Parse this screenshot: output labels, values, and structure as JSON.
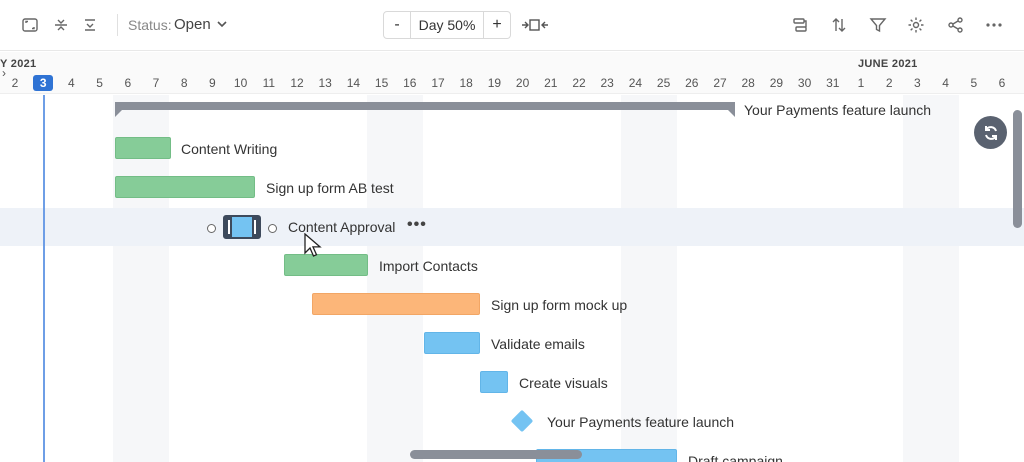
{
  "toolbar": {
    "status_label": "Status:",
    "status_value": "Open",
    "zoom_minus": "-",
    "zoom_value": "Day 50%",
    "zoom_plus": "+",
    "icons": [
      "fit-screen-icon",
      "collapse-all-icon",
      "expand-all-icon",
      "chevron-down-icon",
      "fit-range-icon",
      "dependencies-icon",
      "sort-icon",
      "filter-icon",
      "settings-icon",
      "share-icon",
      "more-icon"
    ]
  },
  "timeline": {
    "month_left": "Y 2021",
    "month_right": "JUNE 2021",
    "days": [
      "2",
      "3",
      "4",
      "5",
      "6",
      "7",
      "8",
      "9",
      "10",
      "11",
      "12",
      "13",
      "14",
      "15",
      "16",
      "17",
      "18",
      "19",
      "20",
      "21",
      "22",
      "23",
      "24",
      "25",
      "26",
      "27",
      "28",
      "29",
      "30",
      "31",
      "1",
      "2",
      "3",
      "4",
      "5",
      "6"
    ],
    "today": "3"
  },
  "tasks": {
    "summary": "Your Payments feature launch",
    "t1": "Content Writing",
    "t2": "Sign up form AB test",
    "t3": "Content Approval",
    "t4": "Import Contacts",
    "t5": "Sign up form mock up",
    "t6": "Validate emails",
    "t7": "Create visuals",
    "milestone": "Your Payments feature launch",
    "t9": "Draft campaign"
  },
  "colors": {
    "green": "#86cc98",
    "orange": "#fcb679",
    "blue": "#74c3f2",
    "today": "#2f73d4"
  }
}
